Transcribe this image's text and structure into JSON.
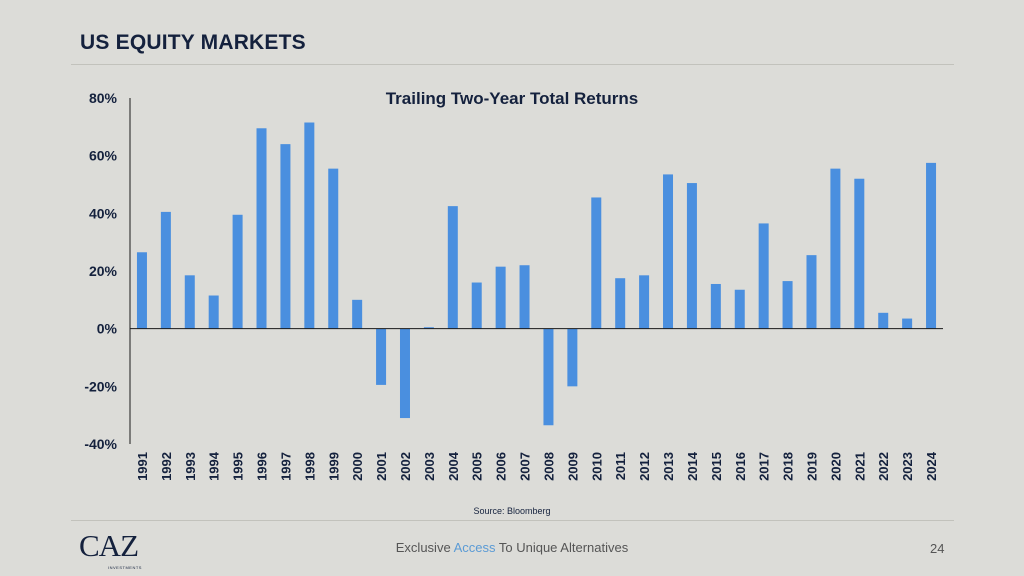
{
  "slide": {
    "title": "US EQUITY MARKETS",
    "source": "Source: Bloomberg",
    "page_number": "24",
    "logo": {
      "text": "CAZ",
      "subtext": "INVESTMENTS"
    },
    "tagline": {
      "before": "Exclusive ",
      "accent": "Access",
      "after": " To Unique Alternatives"
    },
    "colors": {
      "bar": "#4a8fdf",
      "title": "#14213d",
      "accent": "#5b9bd5",
      "background": "#dcdcd8"
    }
  },
  "chart_data": {
    "type": "bar",
    "title": "Trailing Two-Year Total Returns",
    "xlabel": "",
    "ylabel": "",
    "ylim": [
      -40,
      80
    ],
    "yticks": [
      80,
      60,
      40,
      20,
      0,
      -20,
      -40
    ],
    "ytick_labels": [
      "80%",
      "60%",
      "40%",
      "20%",
      "0%",
      "-20%",
      "-40%"
    ],
    "categories": [
      "1991",
      "1992",
      "1993",
      "1994",
      "1995",
      "1996",
      "1997",
      "1998",
      "1999",
      "2000",
      "2001",
      "2002",
      "2003",
      "2004",
      "2005",
      "2006",
      "2007",
      "2008",
      "2009",
      "2010",
      "2011",
      "2012",
      "2013",
      "2014",
      "2015",
      "2016",
      "2017",
      "2018",
      "2019",
      "2020",
      "2021",
      "2022",
      "2023",
      "2024"
    ],
    "values": [
      26.5,
      40.5,
      18.5,
      11.5,
      39.5,
      69.5,
      64,
      71.5,
      55.5,
      10,
      -19.5,
      -31,
      0.5,
      42.5,
      16,
      21.5,
      22,
      -33.5,
      -20,
      45.5,
      17.5,
      18.5,
      53.5,
      50.5,
      15.5,
      13.5,
      36.5,
      16.5,
      25.5,
      55.5,
      52,
      5.5,
      3.5,
      57.5
    ]
  }
}
